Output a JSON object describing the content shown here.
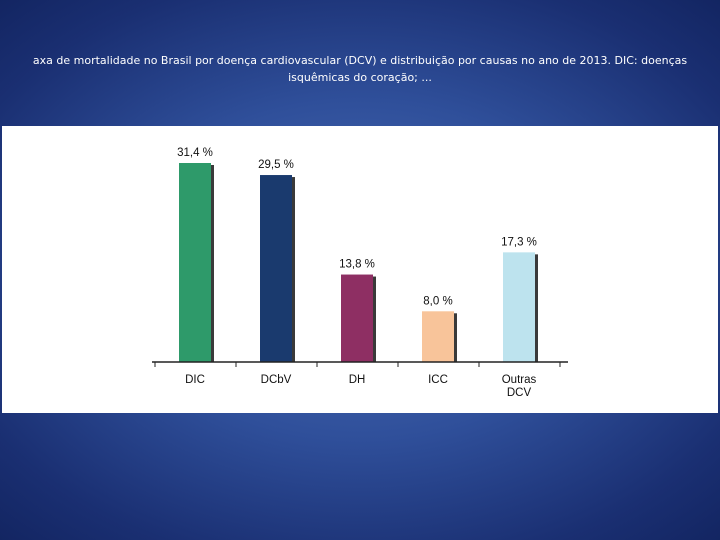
{
  "title": "axa de mortalidade no Brasil por doença cardiovascular (DCV) e distribuição por causas no ano de 2013. DIC: doenças isquêmicas do coração; ...",
  "chart_data": {
    "type": "bar",
    "categories": [
      [
        "DIC"
      ],
      [
        "DCbV"
      ],
      [
        "DH"
      ],
      [
        "ICC"
      ],
      [
        "Outras",
        "DCV"
      ]
    ],
    "values": [
      31.4,
      29.5,
      13.8,
      8.0,
      17.3
    ],
    "data_labels": [
      "31,4 %",
      "29,5 %",
      "13,8 %",
      "8,0 %",
      "17,3 %"
    ],
    "colors": [
      "#2e9a6a",
      "#1a3a6e",
      "#8e2f63",
      "#f8c49a",
      "#bde3ee"
    ],
    "xlabel": "",
    "ylabel": "",
    "ylim": [
      0,
      31.4
    ],
    "grid": false,
    "legend": "none"
  }
}
